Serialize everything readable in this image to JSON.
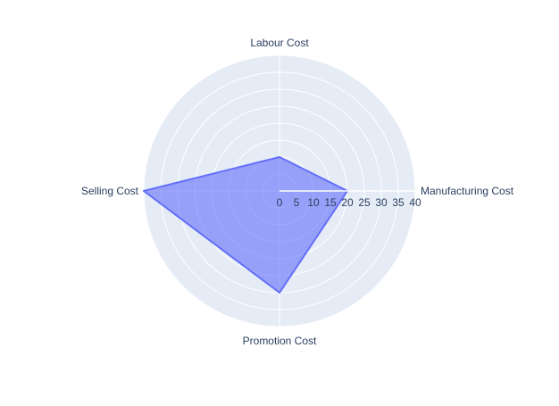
{
  "colors": {
    "background": "#ffffff",
    "polar_bg": "#e5ecf6",
    "grid": "#ffffff",
    "text": "#2a3f5f",
    "trace_line": "#636efa",
    "trace_fill": "rgba(99,110,250,0.6)"
  },
  "chart_data": {
    "type": "radar",
    "title": "",
    "categories": [
      "Manufacturing Cost",
      "Labour Cost",
      "Selling Cost",
      "Promotion Cost"
    ],
    "series": [
      {
        "values": [
          20,
          10,
          40,
          30
        ]
      }
    ],
    "radial_axis": {
      "range": [
        0,
        40
      ],
      "tick_values": [
        0,
        5,
        10,
        15,
        20,
        25,
        30,
        35,
        40
      ],
      "tick_labels": [
        "0",
        "5",
        "10",
        "15",
        "20",
        "25",
        "30",
        "35",
        "40"
      ]
    },
    "grid": true,
    "fill": "toself"
  }
}
